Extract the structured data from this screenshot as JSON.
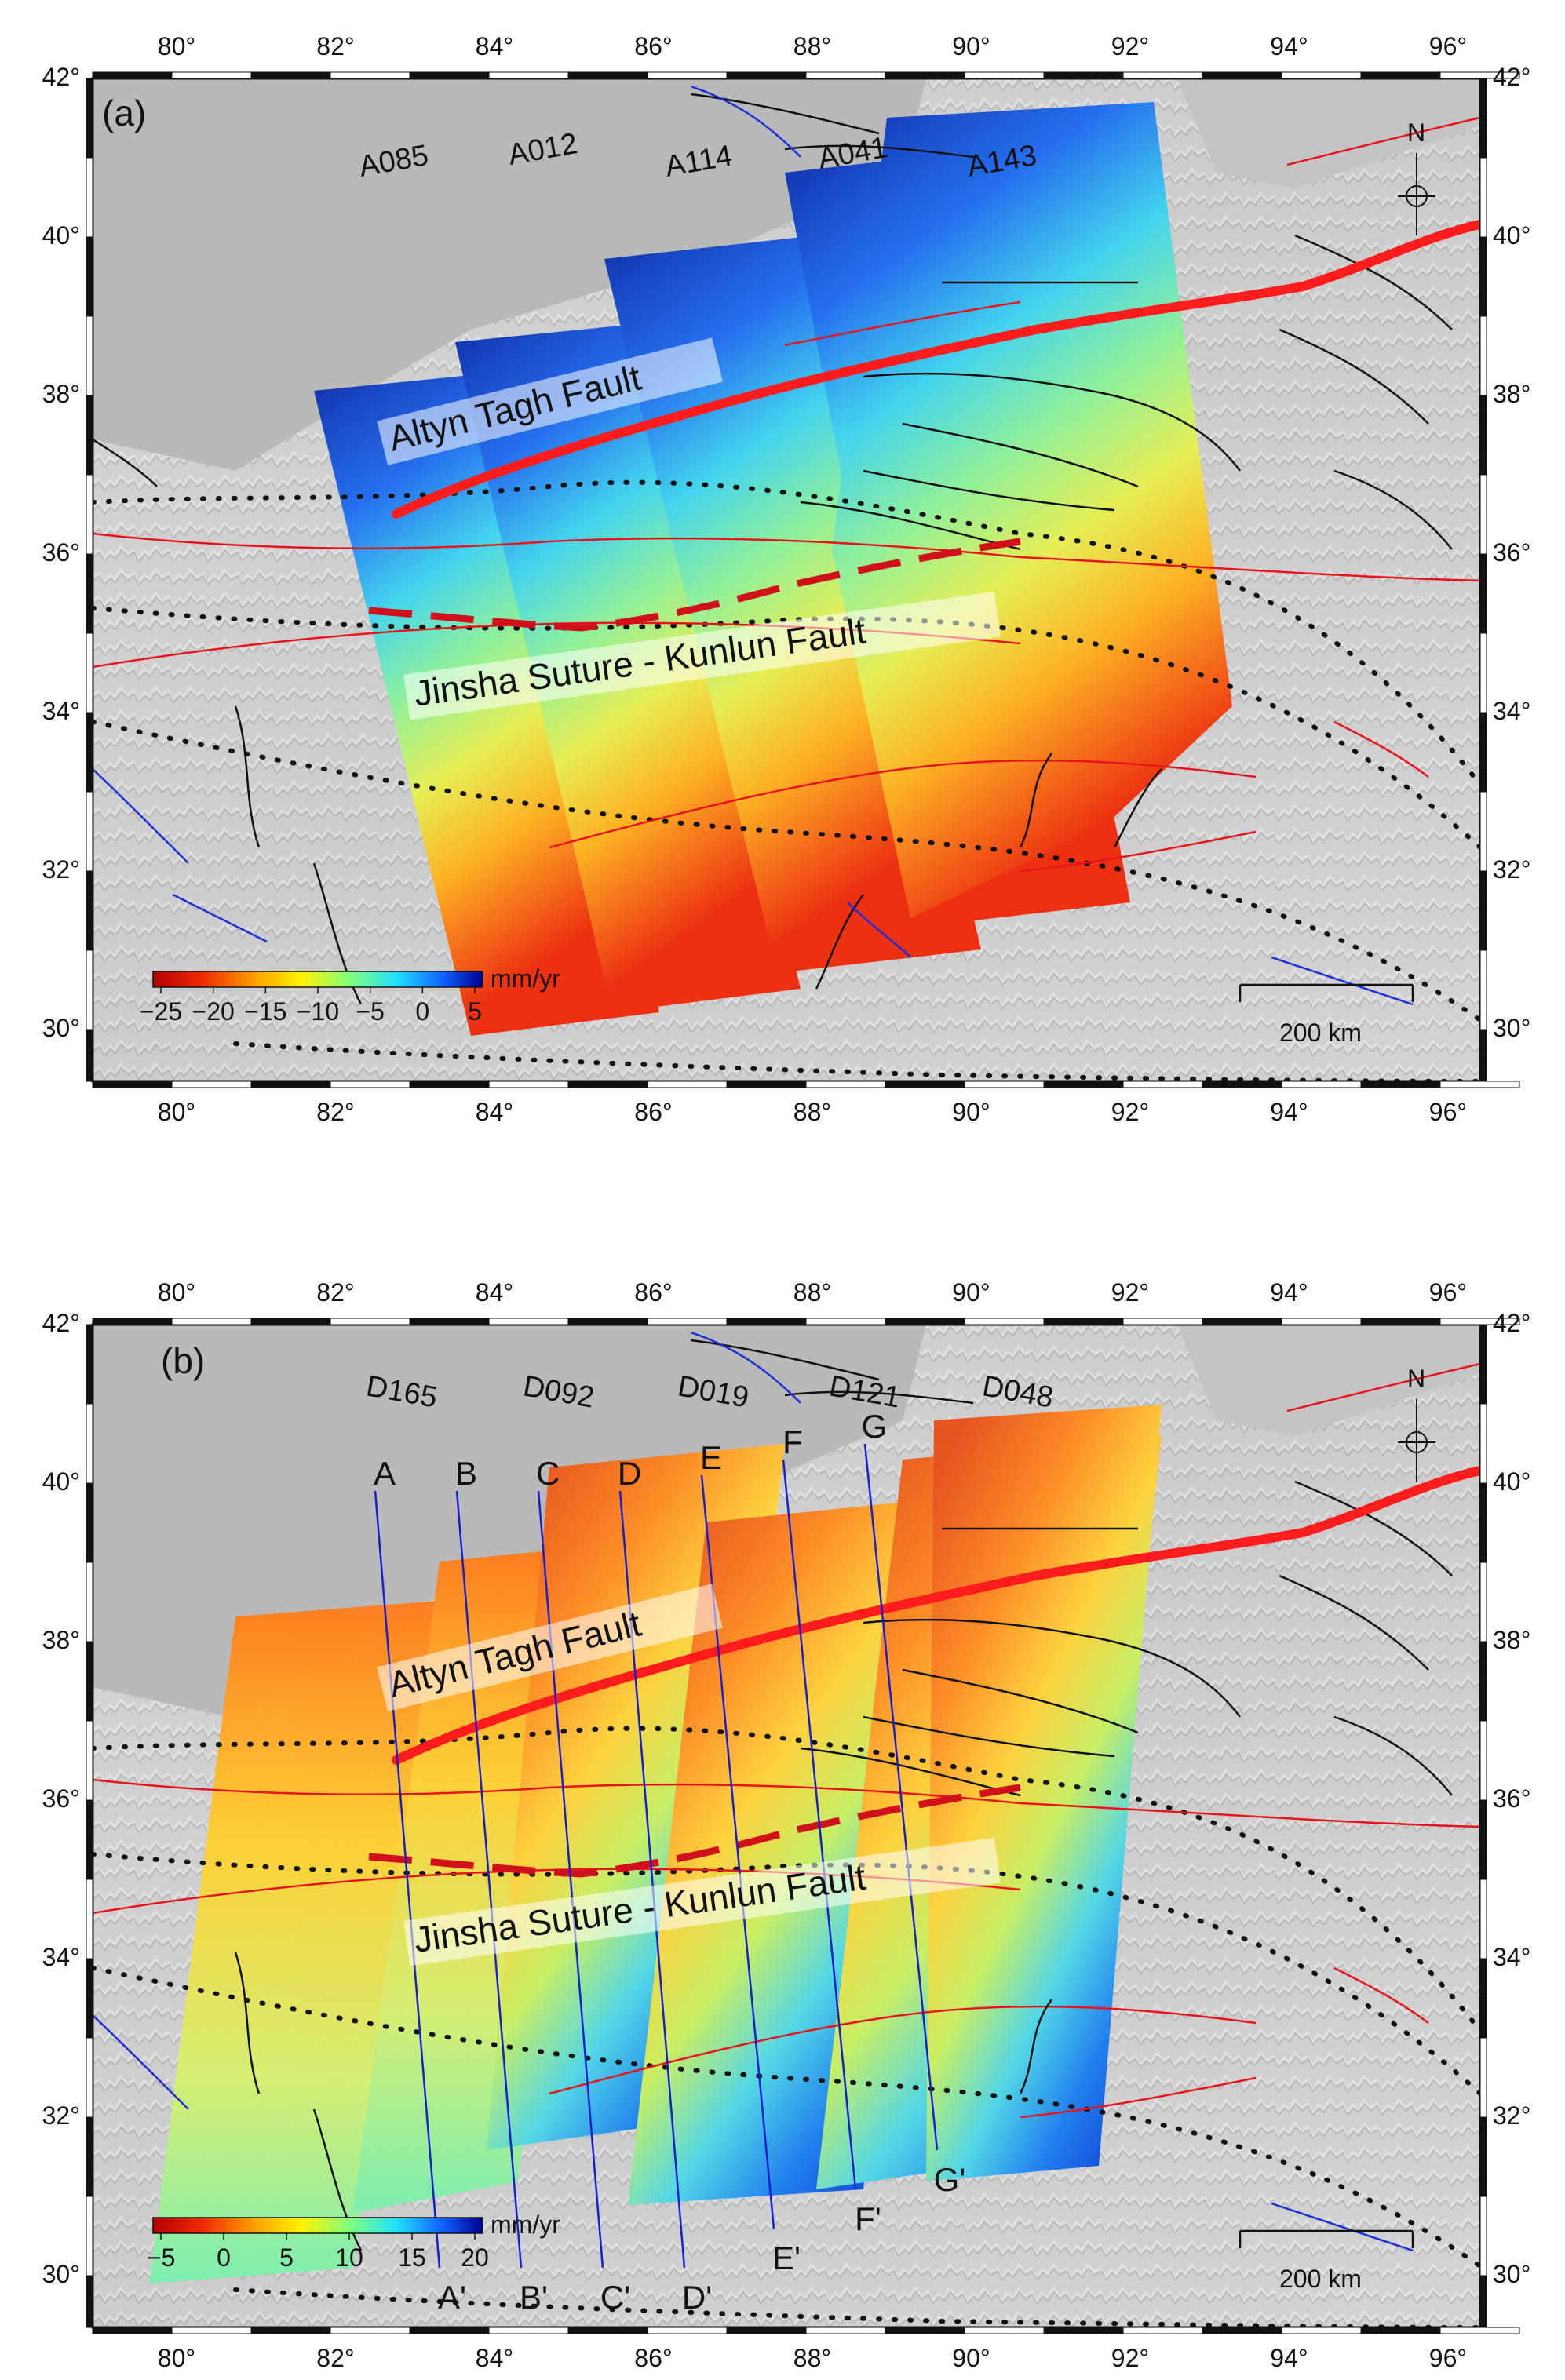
{
  "map": {
    "lon_ticks": [
      "80°",
      "82°",
      "84°",
      "86°",
      "88°",
      "90°",
      "92°",
      "94°",
      "96°"
    ],
    "lat_ticks": [
      "42°",
      "40°",
      "38°",
      "36°",
      "34°",
      "32°",
      "30°"
    ],
    "north_label": "N",
    "scalebar_label": "200 km",
    "colorbar_unit": "mm/yr",
    "colors": {
      "background": "#c9c9c9",
      "basin": "#b8b8b8",
      "active_fault": "#e8141c",
      "major_fault": "#ff1c1c",
      "thrust": "#111111",
      "normal_fault": "#1d2fd6",
      "suture": "#111111"
    }
  },
  "panels": [
    {
      "id": "a",
      "label": "(a)",
      "type": "ascending",
      "colorbar_ticks": [
        "−25",
        "−20",
        "−15",
        "−10",
        "−5",
        "0",
        "5"
      ],
      "colorbar_range": [
        -25,
        5
      ],
      "scenes": [
        {
          "name": "A085"
        },
        {
          "name": "A012"
        },
        {
          "name": "A114"
        },
        {
          "name": "A041"
        },
        {
          "name": "A143"
        }
      ],
      "fault_labels": [
        "Altyn Tagh Fault",
        "Jinsha Suture - Kunlun Fault"
      ]
    },
    {
      "id": "b",
      "label": "(b)",
      "type": "descending",
      "colorbar_ticks": [
        "−5",
        "0",
        "5",
        "10",
        "15",
        "20"
      ],
      "colorbar_range": [
        -5,
        20
      ],
      "scenes": [
        {
          "name": "D165"
        },
        {
          "name": "D092"
        },
        {
          "name": "D019"
        },
        {
          "name": "D121"
        },
        {
          "name": "D048"
        }
      ],
      "fault_labels": [
        "Altyn Tagh Fault",
        "Jinsha Suture - Kunlun Fault"
      ],
      "profiles": [
        {
          "start": "A",
          "end": "A'"
        },
        {
          "start": "B",
          "end": "B'"
        },
        {
          "start": "C",
          "end": "C'"
        },
        {
          "start": "D",
          "end": "D'"
        },
        {
          "start": "E",
          "end": "E'"
        },
        {
          "start": "F",
          "end": "F'"
        },
        {
          "start": "G",
          "end": "G'"
        }
      ]
    }
  ]
}
